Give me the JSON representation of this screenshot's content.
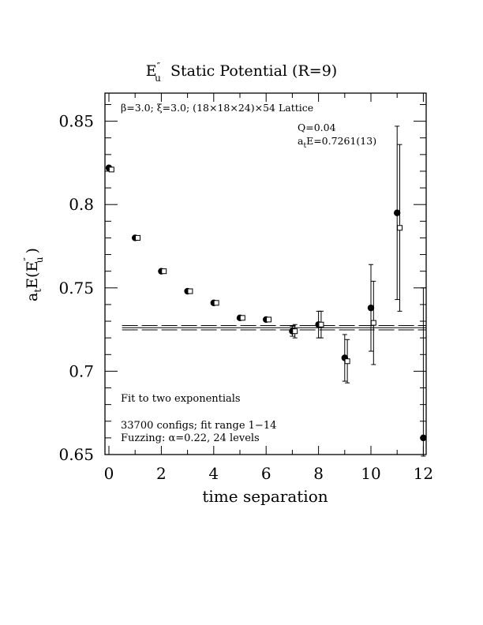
{
  "chart_data": {
    "type": "scatter",
    "title": {
      "prefix": "E",
      "super": "″",
      "sub": "u",
      "rest": "  Static Potential (R=9)"
    },
    "xlabel": "time separation",
    "ylabel": {
      "base": "a",
      "base_sub": "t",
      "mid": "E(E",
      "super": "″",
      "sub": "u",
      "end": ")"
    },
    "xlim": [
      0,
      12
    ],
    "ylim": [
      0.65,
      0.865
    ],
    "x_major_ticks": [
      0,
      2,
      4,
      6,
      8,
      10,
      12
    ],
    "x_tick_labels": [
      "0",
      "2",
      "4",
      "6",
      "8",
      "10",
      "12"
    ],
    "x_minor_step": 1,
    "y_major_ticks": [
      0.65,
      0.7,
      0.75,
      0.8,
      0.85
    ],
    "y_tick_labels": [
      "0.65",
      "0.7",
      "0.75",
      "0.8",
      "0.85"
    ],
    "y_minor_step": 0.01,
    "annotations": {
      "lattice": "β=3.0; ξ=3.0; (18×18×24)×54 Lattice",
      "q": "Q=0.04",
      "energy": {
        "base": "a",
        "sub": "t",
        "rest": "E=0.7261(13)"
      },
      "fit_desc": "Fit to two exponentials",
      "configs": "33700 configs; fit range 1−14",
      "fuzzing": "Fuzzing: α=0.22, 24 levels"
    },
    "fit": {
      "center": 0.7261,
      "err": 0.0013,
      "x_range": [
        0.5,
        12
      ]
    },
    "series": [
      {
        "marker": "filled-circle",
        "x": [
          0,
          1,
          2,
          3,
          4,
          5,
          6,
          7,
          8,
          9,
          10,
          11,
          12
        ],
        "y": [
          0.822,
          0.78,
          0.76,
          0.748,
          0.741,
          0.732,
          0.731,
          0.724,
          0.728,
          0.708,
          0.738,
          0.795,
          0.66
        ],
        "err": [
          0.001,
          0.001,
          0.001,
          0.001,
          0.001,
          0.001,
          0.001,
          0.003,
          0.008,
          0.014,
          0.026,
          0.052,
          0.09
        ]
      },
      {
        "marker": "open-square",
        "x": [
          0.1,
          1.1,
          2.1,
          3.1,
          4.1,
          5.1,
          6.1,
          7.1,
          8.1,
          9.1,
          10.1,
          11.1
        ],
        "y": [
          0.821,
          0.78,
          0.76,
          0.748,
          0.741,
          0.732,
          0.731,
          0.724,
          0.728,
          0.706,
          0.729,
          0.786
        ],
        "err": [
          0.001,
          0.001,
          0.001,
          0.001,
          0.001,
          0.001,
          0.001,
          0.004,
          0.008,
          0.013,
          0.025,
          0.05
        ]
      }
    ]
  }
}
